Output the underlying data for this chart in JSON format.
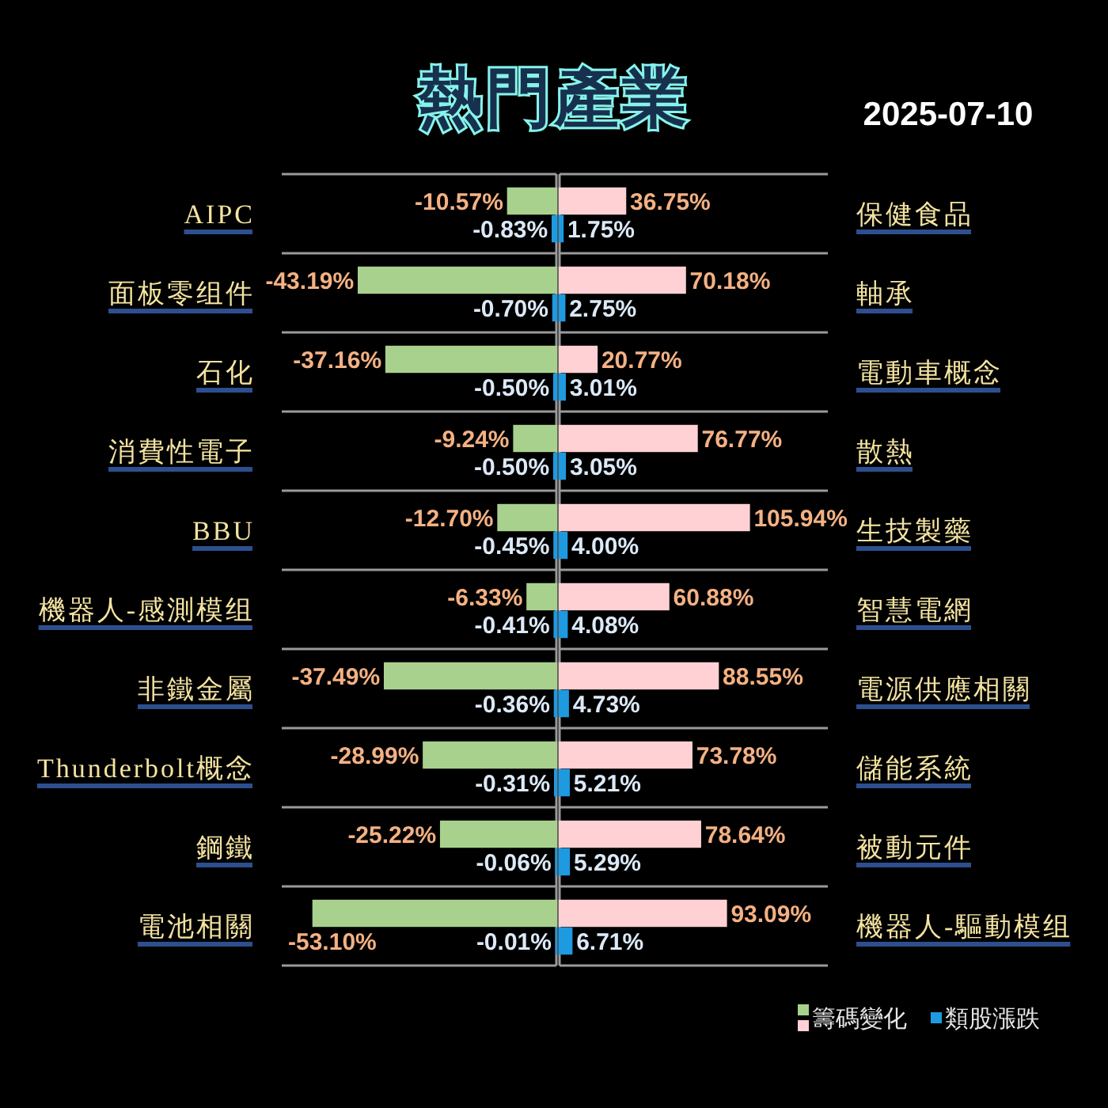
{
  "chart_data": [
    {
      "type": "bar",
      "orientation": "horizontal",
      "title": "熱門產業",
      "categories": [
        "AIPC",
        "面板零组件",
        "石化",
        "消費性電子",
        "BBU",
        "機器人-感測模组",
        "非鐵金屬",
        "Thunderbolt概念",
        "鋼鐵",
        "電池相關"
      ],
      "series": [
        {
          "name": "籌碼變化",
          "color": "#a9d18e",
          "values": [
            -10.57,
            -43.19,
            -37.16,
            -9.24,
            -12.7,
            -6.33,
            -37.49,
            -28.99,
            -25.22,
            -53.1
          ],
          "value_labels": [
            "-10.57%",
            "-43.19%",
            "-37.16%",
            "-9.24%",
            "-12.70%",
            "-6.33%",
            "-37.49%",
            "-28.99%",
            "-25.22%",
            "-53.10%"
          ]
        },
        {
          "name": "類股漲跌",
          "color": "#1e9ae0",
          "values": [
            -0.83,
            -0.7,
            -0.5,
            -0.5,
            -0.45,
            -0.41,
            -0.36,
            -0.31,
            -0.06,
            -0.01
          ],
          "value_labels": [
            "-0.83%",
            "-0.70%",
            "-0.50%",
            "-0.50%",
            "-0.45%",
            "-0.41%",
            "-0.36%",
            "-0.31%",
            "-0.06%",
            "-0.01%"
          ]
        }
      ],
      "xlim": [
        -60,
        0
      ],
      "grid": "y",
      "tick_labels": "y",
      "legend": "bottom right"
    },
    {
      "type": "bar",
      "orientation": "horizontal",
      "subtitle": "2025-07-10",
      "categories": [
        "保健食品",
        "軸承",
        "電動車概念",
        "散熱",
        "生技製藥",
        "智慧電網",
        "電源供應相關",
        "儲能系統",
        "被動元件",
        "機器人-驅動模组"
      ],
      "series": [
        {
          "color": "#ffd0d4",
          "values": [
            36.75,
            70.18,
            20.77,
            76.77,
            105.94,
            60.88,
            88.55,
            73.78,
            78.64,
            93.09
          ],
          "value_labels": [
            "36.75%",
            "70.18%",
            "20.77%",
            "76.77%",
            "105.94%",
            "60.88%",
            "88.55%",
            "73.78%",
            "78.64%",
            "93.09%"
          ]
        },
        {
          "color": "#1e9ae0",
          "values": [
            1.75,
            2.75,
            3.01,
            3.05,
            4.0,
            4.08,
            4.73,
            5.21,
            5.29,
            6.71
          ],
          "value_labels": [
            "1.75%",
            "2.75%",
            "3.01%",
            "3.05%",
            "4.00%",
            "4.08%",
            "4.73%",
            "5.21%",
            "5.29%",
            "6.71%"
          ]
        }
      ],
      "xlim": [
        0,
        150
      ],
      "grid": "y",
      "tick_labels": "y"
    }
  ]
}
